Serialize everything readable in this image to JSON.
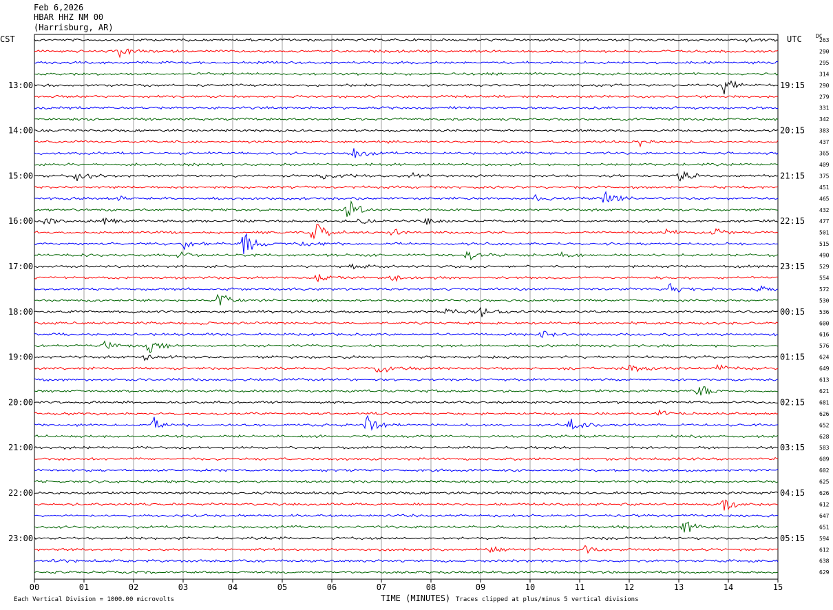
{
  "header": {
    "date": "Feb 6,2026",
    "station": "HBAR HHZ NM 00",
    "location": "(Harrisburg, AR)"
  },
  "left_zone": "CST",
  "right_zone": "UTC",
  "dc_header": "DC",
  "footer": {
    "scale_note": "Each Vertical Division = 1000.00 microvolts",
    "clip_note": "Traces clipped at plus/minus 5 vertical divisions"
  },
  "colors": {
    "trace_cycle": [
      "#000000",
      "#ff0000",
      "#0000ff",
      "#006400"
    ],
    "grid": "#888888"
  },
  "chart_data": {
    "type": "line",
    "xlabel": "TIME (MINUTES)",
    "xlim": [
      0,
      15
    ],
    "x_ticks": [
      "00",
      "01",
      "02",
      "03",
      "04",
      "05",
      "06",
      "07",
      "08",
      "09",
      "10",
      "11",
      "12",
      "13",
      "14",
      "15"
    ],
    "left_hour_labels": [
      "13:00",
      "14:00",
      "15:00",
      "16:00",
      "17:00",
      "18:00",
      "19:00",
      "20:00",
      "21:00",
      "22:00",
      "23:00"
    ],
    "right_hour_labels": [
      "19:15",
      "20:15",
      "21:15",
      "22:15",
      "23:15",
      "00:15",
      "01:15",
      "02:15",
      "03:15",
      "04:15",
      "05:15"
    ],
    "dc_offsets": [
      263,
      290,
      295,
      314,
      290,
      279,
      331,
      342,
      383,
      437,
      365,
      409,
      375,
      451,
      465,
      432,
      477,
      501,
      515,
      490,
      529,
      554,
      572,
      530,
      536,
      600,
      616,
      576,
      624,
      649,
      613,
      621,
      681,
      626,
      652,
      628,
      583,
      609,
      602,
      625,
      626,
      612,
      647,
      651,
      594,
      612,
      638,
      629
    ],
    "events": [
      {
        "trace": 0,
        "minute": 14.3,
        "amp": 0.5
      },
      {
        "trace": 1,
        "minute": 1.7,
        "amp": 1.0
      },
      {
        "trace": 4,
        "minute": 13.9,
        "amp": 1.6
      },
      {
        "trace": 9,
        "minute": 12.2,
        "amp": 1.1
      },
      {
        "trace": 10,
        "minute": 6.4,
        "amp": 1.6
      },
      {
        "trace": 12,
        "minute": 0.8,
        "amp": 1.4
      },
      {
        "trace": 12,
        "minute": 5.8,
        "amp": 0.8
      },
      {
        "trace": 12,
        "minute": 7.6,
        "amp": 0.6
      },
      {
        "trace": 12,
        "minute": 13.0,
        "amp": 1.2
      },
      {
        "trace": 14,
        "minute": 1.7,
        "amp": 0.6
      },
      {
        "trace": 14,
        "minute": 10.1,
        "amp": 0.6
      },
      {
        "trace": 14,
        "minute": 11.5,
        "amp": 1.8
      },
      {
        "trace": 15,
        "minute": 6.3,
        "amp": 2.2
      },
      {
        "trace": 16,
        "minute": 0.2,
        "amp": 1.0
      },
      {
        "trace": 16,
        "minute": 1.4,
        "amp": 0.6
      },
      {
        "trace": 16,
        "minute": 6.5,
        "amp": 1.0
      },
      {
        "trace": 16,
        "minute": 7.9,
        "amp": 0.8
      },
      {
        "trace": 17,
        "minute": 5.6,
        "amp": 3.0
      },
      {
        "trace": 17,
        "minute": 7.2,
        "amp": 0.7
      },
      {
        "trace": 17,
        "minute": 12.7,
        "amp": 0.6
      },
      {
        "trace": 17,
        "minute": 13.7,
        "amp": 0.9
      },
      {
        "trace": 18,
        "minute": 3.0,
        "amp": 1.2
      },
      {
        "trace": 18,
        "minute": 4.2,
        "amp": 2.5
      },
      {
        "trace": 18,
        "minute": 5.4,
        "amp": 0.6
      },
      {
        "trace": 19,
        "minute": 2.9,
        "amp": 0.9
      },
      {
        "trace": 19,
        "minute": 8.7,
        "amp": 1.0
      },
      {
        "trace": 19,
        "minute": 10.6,
        "amp": 0.6
      },
      {
        "trace": 20,
        "minute": 6.4,
        "amp": 0.5
      },
      {
        "trace": 21,
        "minute": 5.7,
        "amp": 0.7
      },
      {
        "trace": 21,
        "minute": 7.2,
        "amp": 0.8
      },
      {
        "trace": 22,
        "minute": 12.8,
        "amp": 0.9
      },
      {
        "trace": 22,
        "minute": 14.6,
        "amp": 0.8
      },
      {
        "trace": 23,
        "minute": 3.7,
        "amp": 1.4
      },
      {
        "trace": 24,
        "minute": 8.3,
        "amp": 0.7
      },
      {
        "trace": 24,
        "minute": 9.0,
        "amp": 1.3
      },
      {
        "trace": 25,
        "minute": 3.3,
        "amp": 0.4
      },
      {
        "trace": 26,
        "minute": 10.2,
        "amp": 0.8
      },
      {
        "trace": 27,
        "minute": 1.4,
        "amp": 0.9
      },
      {
        "trace": 27,
        "minute": 2.3,
        "amp": 1.3
      },
      {
        "trace": 28,
        "minute": 2.2,
        "amp": 0.8
      },
      {
        "trace": 29,
        "minute": 6.9,
        "amp": 1.4
      },
      {
        "trace": 29,
        "minute": 12.0,
        "amp": 1.1
      },
      {
        "trace": 29,
        "minute": 13.8,
        "amp": 0.8
      },
      {
        "trace": 31,
        "minute": 13.4,
        "amp": 1.6
      },
      {
        "trace": 33,
        "minute": 12.6,
        "amp": 0.6
      },
      {
        "trace": 34,
        "minute": 2.4,
        "amp": 1.3
      },
      {
        "trace": 34,
        "minute": 6.7,
        "amp": 1.7
      },
      {
        "trace": 34,
        "minute": 10.8,
        "amp": 1.1
      },
      {
        "trace": 41,
        "minute": 13.9,
        "amp": 1.5
      },
      {
        "trace": 43,
        "minute": 13.1,
        "amp": 1.4
      },
      {
        "trace": 45,
        "minute": 11.1,
        "amp": 0.8
      },
      {
        "trace": 45,
        "minute": 9.2,
        "amp": 0.5
      },
      {
        "trace": 46,
        "minute": 0.4,
        "amp": 0.6
      }
    ]
  }
}
